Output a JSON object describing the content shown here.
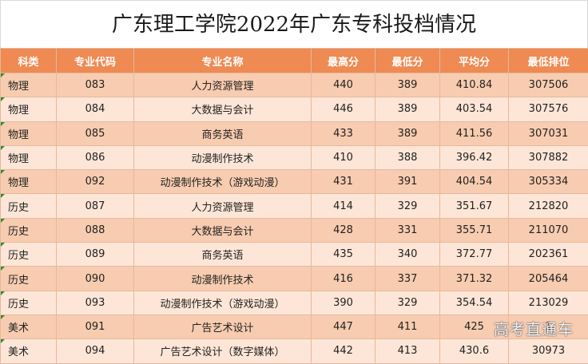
{
  "title": "广东理工学院2022年广东专科投档情况",
  "headers": [
    "科类",
    "专业代码",
    "专业名称",
    "最高分",
    "最低分",
    "平均分",
    "最低排位"
  ],
  "rows": [
    [
      "物理",
      "083",
      "人力资源管理",
      "440",
      "389",
      "410.84",
      "307506"
    ],
    [
      "物理",
      "084",
      "大数据与会计",
      "446",
      "389",
      "403.54",
      "307576"
    ],
    [
      "物理",
      "085",
      "商务英语",
      "433",
      "389",
      "411.56",
      "307031"
    ],
    [
      "物理",
      "086",
      "动漫制作技术",
      "410",
      "388",
      "396.42",
      "307882"
    ],
    [
      "物理",
      "092",
      "动漫制作技术（游戏动漫）",
      "431",
      "391",
      "404.54",
      "305334"
    ],
    [
      "历史",
      "087",
      "人力资源管理",
      "414",
      "329",
      "351.67",
      "212820"
    ],
    [
      "历史",
      "088",
      "大数据与会计",
      "428",
      "331",
      "355.71",
      "211070"
    ],
    [
      "历史",
      "089",
      "商务英语",
      "435",
      "340",
      "372.77",
      "202361"
    ],
    [
      "历史",
      "090",
      "动漫制作技术",
      "416",
      "337",
      "371.32",
      "205464"
    ],
    [
      "历史",
      "093",
      "动漫制作技术（游戏动漫）",
      "390",
      "329",
      "354.54",
      "213029"
    ],
    [
      "美术",
      "091",
      "广告艺术设计",
      "447",
      "411",
      "425",
      "1"
    ],
    [
      "美术",
      "094",
      "广告艺术设计（数字媒体）",
      "442",
      "413",
      "430.6",
      "30973"
    ]
  ],
  "watermark": "高考直通车",
  "colors": {
    "header": "#ee8a52",
    "row_odd": "#f8ccb0",
    "row_even": "#fde6d7",
    "border": "#e6b89c"
  }
}
